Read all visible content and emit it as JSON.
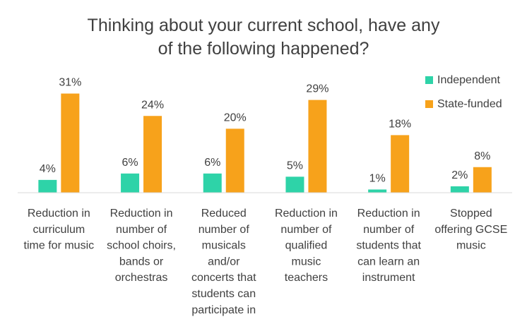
{
  "chart_data": {
    "type": "bar",
    "title": [
      "Thinking about your current school, have any",
      "of the following happened?"
    ],
    "categories": [
      [
        "Reduction in",
        "curriculum",
        "time for music"
      ],
      [
        "Reduction in",
        "number of",
        "school choirs,",
        "bands or",
        "orchestras"
      ],
      [
        "Reduced",
        "number of",
        "musicals",
        "and/or",
        "concerts that",
        "students can",
        "participate in"
      ],
      [
        "Reduction in",
        "number of",
        "qualified",
        "music",
        "teachers"
      ],
      [
        "Reduction in",
        "number of",
        "students that",
        "can learn an",
        "instrument"
      ],
      [
        "Stopped",
        "offering GCSE",
        "music"
      ]
    ],
    "series": [
      {
        "name": "Independent",
        "color": "#2ed3a8",
        "values": [
          4,
          6,
          6,
          5,
          1,
          2
        ],
        "labels": [
          "4%",
          "6%",
          "6%",
          "5%",
          "1%",
          "2%"
        ]
      },
      {
        "name": "State-funded",
        "color": "#f7a21b",
        "values": [
          31,
          24,
          20,
          29,
          18,
          8
        ],
        "labels": [
          "31%",
          "24%",
          "20%",
          "29%",
          "18%",
          "8%"
        ]
      }
    ],
    "ylim": [
      0,
      32
    ],
    "grid": false,
    "legend_position": "top-right"
  }
}
